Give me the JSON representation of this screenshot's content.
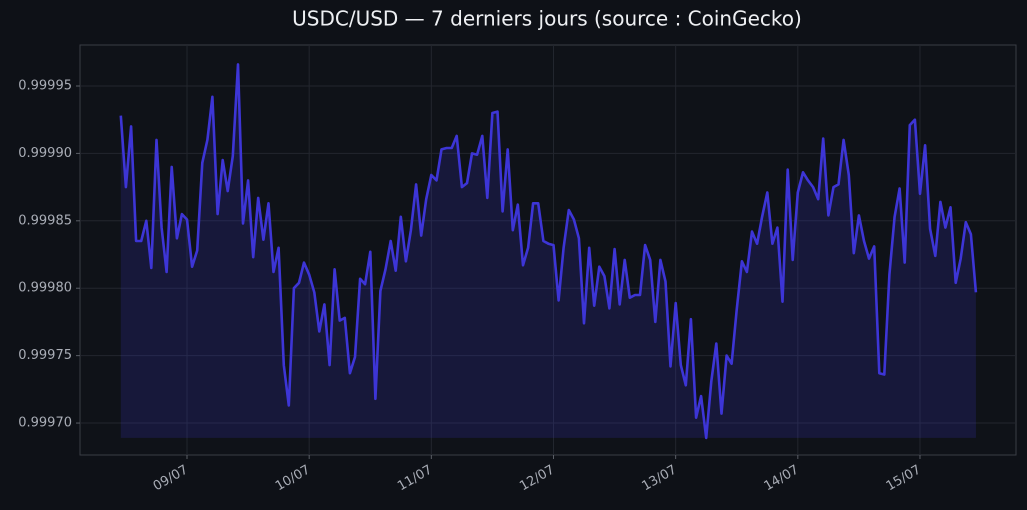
{
  "chart_data": {
    "type": "line",
    "title": "USDC/USD — 7 derniers jours (source : CoinGecko)",
    "x": [
      8.458,
      8.5,
      8.542,
      8.583,
      8.625,
      8.667,
      8.708,
      8.75,
      8.792,
      8.833,
      8.875,
      8.917,
      8.958,
      9,
      9.042,
      9.083,
      9.125,
      9.167,
      9.208,
      9.25,
      9.292,
      9.333,
      9.375,
      9.417,
      9.458,
      9.5,
      9.542,
      9.583,
      9.625,
      9.667,
      9.708,
      9.75,
      9.792,
      9.833,
      9.875,
      9.917,
      9.958,
      10,
      10.042,
      10.083,
      10.125,
      10.167,
      10.208,
      10.25,
      10.292,
      10.333,
      10.375,
      10.417,
      10.458,
      10.5,
      10.542,
      10.583,
      10.625,
      10.667,
      10.708,
      10.75,
      10.792,
      10.833,
      10.875,
      10.917,
      10.958,
      11,
      11.042,
      11.083,
      11.125,
      11.167,
      11.208,
      11.25,
      11.292,
      11.333,
      11.375,
      11.417,
      11.458,
      11.5,
      11.542,
      11.583,
      11.625,
      11.667,
      11.708,
      11.75,
      11.792,
      11.833,
      11.875,
      11.917,
      11.958,
      12,
      12.042,
      12.083,
      12.125,
      12.167,
      12.208,
      12.25,
      12.292,
      12.333,
      12.375,
      12.417,
      12.458,
      12.5,
      12.542,
      12.583,
      12.625,
      12.667,
      12.708,
      12.75,
      12.792,
      12.833,
      12.875,
      12.917,
      12.958,
      13,
      13.042,
      13.083,
      13.125,
      13.167,
      13.208,
      13.25,
      13.292,
      13.333,
      13.375,
      13.417,
      13.458,
      13.5,
      13.542,
      13.583,
      13.625,
      13.667,
      13.708,
      13.75,
      13.792,
      13.833,
      13.875,
      13.917,
      13.958,
      14,
      14.042,
      14.083,
      14.125,
      14.167,
      14.208,
      14.25,
      14.292,
      14.333,
      14.375,
      14.417,
      14.458,
      14.5,
      14.542,
      14.583,
      14.625,
      14.667,
      14.708,
      14.75,
      14.792,
      14.833,
      14.875,
      14.917,
      14.958,
      15,
      15.042,
      15.083,
      15.125,
      15.167,
      15.208,
      15.25,
      15.292,
      15.333,
      15.375,
      15.417,
      15.458
    ],
    "series": [
      {
        "color": "#3d35d6",
        "values": [
          0.999928,
          0.999875,
          0.99992,
          0.999835,
          0.999835,
          0.99985,
          0.999815,
          0.99991,
          0.999845,
          0.999812,
          0.99989,
          0.999837,
          0.999855,
          0.999851,
          0.999816,
          0.999828,
          0.999893,
          0.99991,
          0.999942,
          0.999855,
          0.999895,
          0.999872,
          0.999898,
          0.999966,
          0.999848,
          0.99988,
          0.999823,
          0.999867,
          0.999836,
          0.999863,
          0.999812,
          0.99983,
          0.999743,
          0.999713,
          0.9998,
          0.999804,
          0.999819,
          0.99981,
          0.999797,
          0.999768,
          0.999788,
          0.999743,
          0.999814,
          0.999776,
          0.999778,
          0.999737,
          0.999749,
          0.999807,
          0.999803,
          0.999827,
          0.999718,
          0.999798,
          0.999814,
          0.999835,
          0.999813,
          0.999853,
          0.99982,
          0.999843,
          0.999877,
          0.999839,
          0.999866,
          0.999884,
          0.99988,
          0.999903,
          0.999904,
          0.999904,
          0.999913,
          0.999875,
          0.999878,
          0.9999,
          0.999899,
          0.999913,
          0.999867,
          0.99993,
          0.999931,
          0.999857,
          0.999903,
          0.999843,
          0.999862,
          0.999817,
          0.99983,
          0.999863,
          0.999863,
          0.999835,
          0.999833,
          0.999832,
          0.999791,
          0.99983,
          0.999858,
          0.999851,
          0.999837,
          0.999774,
          0.99983,
          0.999787,
          0.999816,
          0.999809,
          0.999785,
          0.999829,
          0.999788,
          0.999821,
          0.999793,
          0.999795,
          0.999795,
          0.999832,
          0.999821,
          0.999775,
          0.999821,
          0.999805,
          0.999742,
          0.999789,
          0.999743,
          0.999728,
          0.999777,
          0.999704,
          0.99972,
          0.999689,
          0.999731,
          0.999759,
          0.999707,
          0.99975,
          0.999744,
          0.999784,
          0.99982,
          0.999812,
          0.999842,
          0.999833,
          0.999853,
          0.999871,
          0.999833,
          0.999845,
          0.99979,
          0.999888,
          0.999821,
          0.999871,
          0.999886,
          0.99988,
          0.999875,
          0.999866,
          0.999911,
          0.999854,
          0.999875,
          0.999877,
          0.99991,
          0.999884,
          0.999826,
          0.999854,
          0.999835,
          0.999822,
          0.999831,
          0.999737,
          0.999736,
          0.99981,
          0.999853,
          0.999874,
          0.999819,
          0.999921,
          0.999925,
          0.99987,
          0.999906,
          0.999844,
          0.999824,
          0.999864,
          0.999845,
          0.99986,
          0.999804,
          0.999822,
          0.999849,
          0.99984,
          0.999797
        ]
      }
    ],
    "xlim": [
      8.124,
      15.786
    ],
    "xticks": [
      {
        "value": 9,
        "label": "09/07"
      },
      {
        "value": 10,
        "label": "10/07"
      },
      {
        "value": 11,
        "label": "11/07"
      },
      {
        "value": 12,
        "label": "12/07"
      },
      {
        "value": 13,
        "label": "13/07"
      },
      {
        "value": 14,
        "label": "14/07"
      },
      {
        "value": 15,
        "label": "15/07"
      }
    ],
    "ylim": [
      0.9996763,
      0.9999804
    ],
    "yticks": [
      {
        "value": 0.9997,
        "label": "0.99970"
      },
      {
        "value": 0.99975,
        "label": "0.99975"
      },
      {
        "value": 0.9998,
        "label": "0.99980"
      },
      {
        "value": 0.99985,
        "label": "0.99985"
      },
      {
        "value": 0.9999,
        "label": "0.99990"
      },
      {
        "value": 0.99995,
        "label": "0.99995"
      }
    ],
    "grid": true
  }
}
